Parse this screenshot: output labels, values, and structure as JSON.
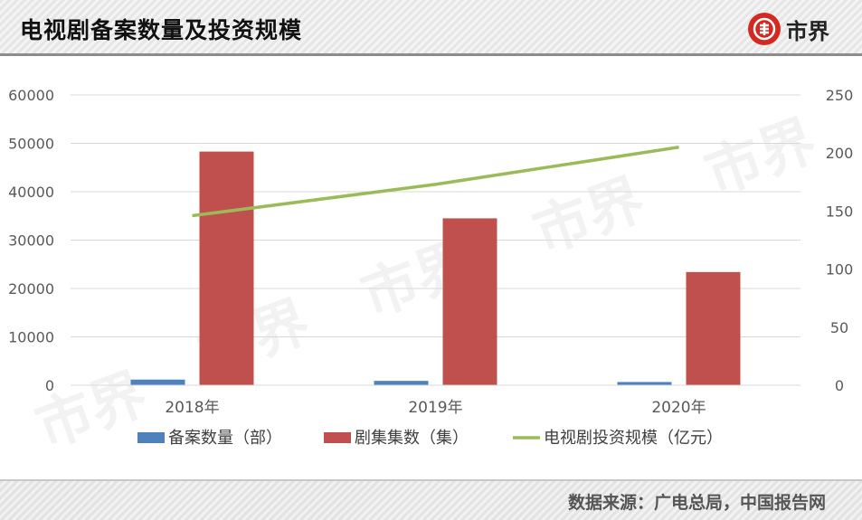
{
  "header": {
    "title": "电视剧备案数量及投资规模",
    "brand_name": "市界"
  },
  "watermark_text": "市界",
  "footer": {
    "source": "数据来源：广电总局，中国报告网"
  },
  "colors": {
    "series_blue": "#4f81bd",
    "series_red": "#c0504d",
    "series_green": "#9bbb59",
    "brand_red": "#d22a22"
  },
  "chart_data": {
    "type": "bar",
    "categories": [
      "2018年",
      "2019年",
      "2020年"
    ],
    "series": [
      {
        "name": "备案数量（部）",
        "type": "bar",
        "axis": "left",
        "values": [
          1170,
          905,
          670
        ]
      },
      {
        "name": "剧集集数（集）",
        "type": "bar",
        "axis": "left",
        "values": [
          48300,
          34500,
          23400
        ]
      },
      {
        "name": "电视剧投资规模（亿元）",
        "type": "line",
        "axis": "right",
        "values": [
          146,
          173,
          205
        ]
      }
    ],
    "y_left": {
      "min": 0,
      "max": 60000,
      "ticks": [
        0,
        10000,
        20000,
        30000,
        40000,
        50000,
        60000
      ]
    },
    "y_right": {
      "min": 0,
      "max": 250,
      "ticks": [
        0,
        50,
        100,
        150,
        200,
        250
      ]
    },
    "grid": true,
    "legend_position": "bottom"
  }
}
